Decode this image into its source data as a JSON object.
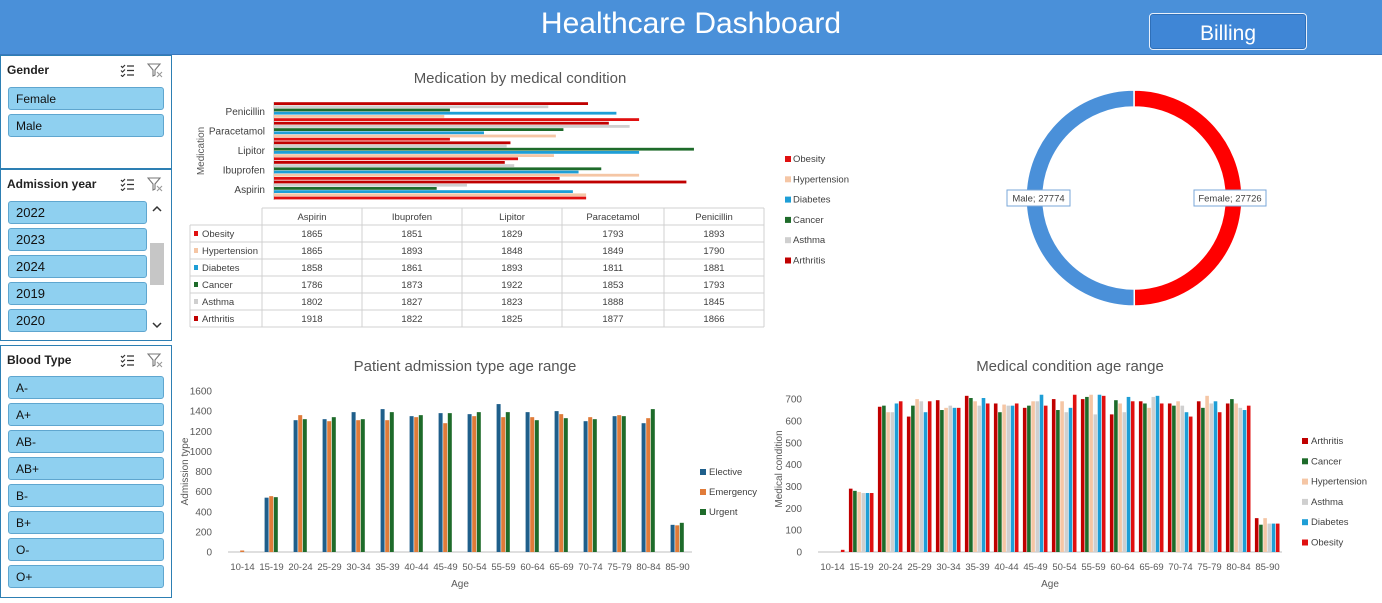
{
  "header": {
    "title": "Healthcare Dashboard",
    "billing_label": "Billing"
  },
  "slicers": {
    "gender": {
      "title": "Gender",
      "items": [
        "Female",
        "Male"
      ]
    },
    "admission_year": {
      "title": "Admission year",
      "items": [
        "2022",
        "2023",
        "2024",
        "2019",
        "2020"
      ]
    },
    "blood_type": {
      "title": "Blood Type",
      "items": [
        "A-",
        "A+",
        "AB-",
        "AB+",
        "B-",
        "B+",
        "O-",
        "O+"
      ]
    }
  },
  "colors": {
    "Obesity": "#e01010",
    "Hypertension": "#f5c6a5",
    "Diabetes": "#1e9ed6",
    "Cancer": "#1e6b2a",
    "Asthma": "#cfcfcf",
    "Arthritis": "#c00000",
    "Elective": "#1f5f8b",
    "Emergency": "#e07b39",
    "Urgent": "#1e6b2a",
    "Male": "#4a90d9",
    "Female": "#ff0000"
  },
  "chart_data": [
    {
      "id": "medication",
      "type": "bar",
      "orientation": "horizontal",
      "title": "Medication by medical condition",
      "ylabel": "Medication",
      "categories": [
        "Aspirin",
        "Ibuprofen",
        "Lipitor",
        "Paracetamol",
        "Penicillin"
      ],
      "xlim": [
        1700,
        1940
      ],
      "series": [
        {
          "name": "Obesity",
          "values": [
            1865,
            1851,
            1829,
            1793,
            1893
          ]
        },
        {
          "name": "Hypertension",
          "values": [
            1865,
            1893,
            1848,
            1849,
            1790
          ]
        },
        {
          "name": "Diabetes",
          "values": [
            1858,
            1861,
            1893,
            1811,
            1881
          ]
        },
        {
          "name": "Cancer",
          "values": [
            1786,
            1873,
            1922,
            1853,
            1793
          ]
        },
        {
          "name": "Asthma",
          "values": [
            1802,
            1827,
            1823,
            1888,
            1845
          ]
        },
        {
          "name": "Arthritis",
          "values": [
            1918,
            1822,
            1825,
            1877,
            1866
          ]
        }
      ]
    },
    {
      "id": "gender",
      "type": "pie",
      "title": "",
      "slices": [
        {
          "name": "Female",
          "value": 27726,
          "label": "Female; 27726"
        },
        {
          "name": "Male",
          "value": 27774,
          "label": "Male; 27774"
        }
      ]
    },
    {
      "id": "admission",
      "type": "bar",
      "title": "Patient admission type age range",
      "xlabel": "Age",
      "ylabel": "Admission type",
      "ylim": [
        0,
        1600
      ],
      "yticks": [
        0,
        200,
        400,
        600,
        800,
        1000,
        1200,
        1400,
        1600
      ],
      "categories": [
        "10-14",
        "15-19",
        "20-24",
        "25-29",
        "30-34",
        "35-39",
        "40-44",
        "45-49",
        "50-54",
        "55-59",
        "60-64",
        "65-69",
        "70-74",
        "75-79",
        "80-84",
        "85-90"
      ],
      "series": [
        {
          "name": "Elective",
          "values": [
            0,
            540,
            1310,
            1320,
            1390,
            1420,
            1350,
            1380,
            1370,
            1470,
            1390,
            1400,
            1300,
            1350,
            1280,
            270
          ]
        },
        {
          "name": "Emergency",
          "values": [
            15,
            555,
            1360,
            1300,
            1310,
            1310,
            1340,
            1280,
            1350,
            1340,
            1340,
            1370,
            1340,
            1360,
            1330,
            265
          ]
        },
        {
          "name": "Urgent",
          "values": [
            0,
            545,
            1320,
            1340,
            1320,
            1390,
            1360,
            1380,
            1390,
            1390,
            1310,
            1330,
            1320,
            1350,
            1420,
            290
          ]
        }
      ]
    },
    {
      "id": "condition_age",
      "type": "bar",
      "title": "Medical condition age range",
      "xlabel": "Age",
      "ylabel": "Medical condition",
      "ylim": [
        0,
        760
      ],
      "yticks": [
        0,
        100,
        200,
        300,
        400,
        500,
        600,
        700
      ],
      "categories": [
        "10-14",
        "15-19",
        "20-24",
        "25-29",
        "30-34",
        "35-39",
        "40-44",
        "45-49",
        "50-54",
        "55-59",
        "60-64",
        "65-69",
        "70-74",
        "75-79",
        "80-84",
        "85-90"
      ],
      "series": [
        {
          "name": "Arthritis",
          "values": [
            0,
            290,
            665,
            620,
            695,
            715,
            680,
            660,
            700,
            700,
            630,
            690,
            680,
            690,
            680,
            155
          ]
        },
        {
          "name": "Cancer",
          "values": [
            0,
            280,
            670,
            670,
            650,
            705,
            640,
            670,
            650,
            710,
            695,
            680,
            670,
            660,
            700,
            125
          ]
        },
        {
          "name": "Hypertension",
          "values": [
            0,
            275,
            640,
            700,
            660,
            690,
            675,
            690,
            690,
            720,
            680,
            660,
            690,
            715,
            680,
            155
          ]
        },
        {
          "name": "Asthma",
          "values": [
            0,
            270,
            640,
            690,
            670,
            670,
            670,
            690,
            640,
            630,
            640,
            710,
            670,
            680,
            660,
            130
          ]
        },
        {
          "name": "Diabetes",
          "values": [
            0,
            270,
            680,
            640,
            660,
            705,
            670,
            720,
            660,
            720,
            710,
            715,
            640,
            690,
            650,
            130
          ]
        },
        {
          "name": "Obesity",
          "values": [
            10,
            270,
            690,
            690,
            660,
            680,
            680,
            670,
            720,
            715,
            690,
            680,
            620,
            640,
            670,
            130
          ]
        }
      ]
    }
  ]
}
